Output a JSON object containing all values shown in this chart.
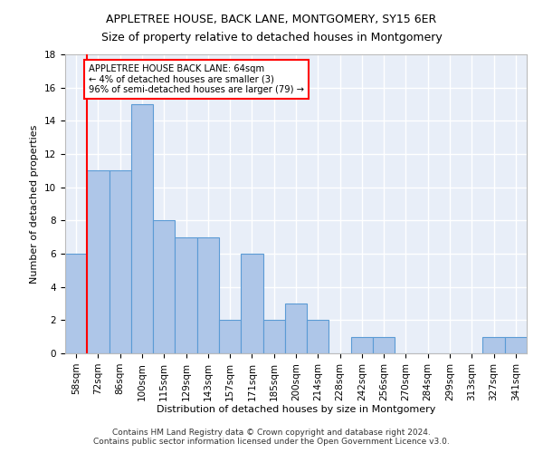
{
  "title": "APPLETREE HOUSE, BACK LANE, MONTGOMERY, SY15 6ER",
  "subtitle": "Size of property relative to detached houses in Montgomery",
  "xlabel": "Distribution of detached houses by size in Montgomery",
  "ylabel": "Number of detached properties",
  "categories": [
    "58sqm",
    "72sqm",
    "86sqm",
    "100sqm",
    "115sqm",
    "129sqm",
    "143sqm",
    "157sqm",
    "171sqm",
    "185sqm",
    "200sqm",
    "214sqm",
    "228sqm",
    "242sqm",
    "256sqm",
    "270sqm",
    "284sqm",
    "299sqm",
    "313sqm",
    "327sqm",
    "341sqm"
  ],
  "values": [
    6,
    11,
    11,
    15,
    8,
    7,
    7,
    2,
    6,
    2,
    3,
    2,
    0,
    1,
    1,
    0,
    0,
    0,
    0,
    1,
    1
  ],
  "bar_color": "#aec6e8",
  "bar_edge_color": "#5b9bd5",
  "vline_color": "red",
  "annotation_line1": "APPLETREE HOUSE BACK LANE: 64sqm",
  "annotation_line2": "← 4% of detached houses are smaller (3)",
  "annotation_line3": "96% of semi-detached houses are larger (79) →",
  "ylim": [
    0,
    18
  ],
  "yticks": [
    0,
    2,
    4,
    6,
    8,
    10,
    12,
    14,
    16,
    18
  ],
  "background_color": "#e8eef8",
  "grid_color": "#ffffff",
  "footer_line1": "Contains HM Land Registry data © Crown copyright and database right 2024.",
  "footer_line2": "Contains public sector information licensed under the Open Government Licence v3.0.",
  "title_fontsize": 9,
  "axis_label_fontsize": 8,
  "tick_fontsize": 7.5,
  "footer_fontsize": 6.5
}
